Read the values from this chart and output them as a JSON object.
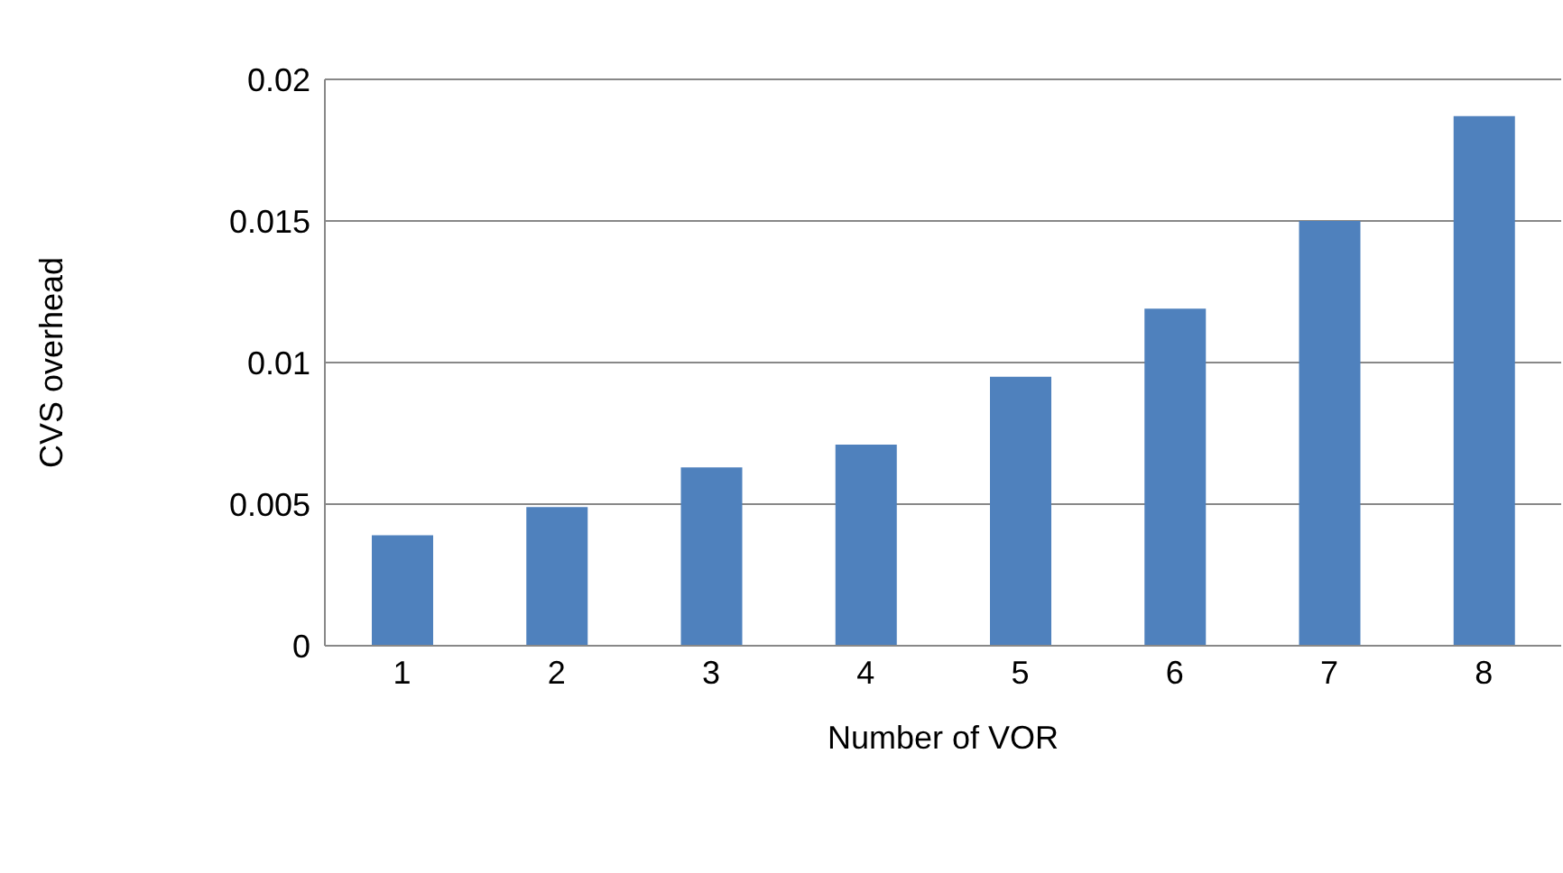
{
  "chart_data": {
    "type": "bar",
    "xlabel": "Number of VOR",
    "ylabel": "CVS overhead",
    "categories": [
      "1",
      "2",
      "3",
      "4",
      "5",
      "6",
      "7",
      "8"
    ],
    "values": [
      0.0039,
      0.0049,
      0.0063,
      0.0071,
      0.0095,
      0.0119,
      0.015,
      0.0187
    ],
    "color": "#4f81bd",
    "ylim": [
      0,
      0.02
    ],
    "yticks": [
      0,
      0.005,
      0.01,
      0.015,
      0.02
    ],
    "grid": "y"
  }
}
